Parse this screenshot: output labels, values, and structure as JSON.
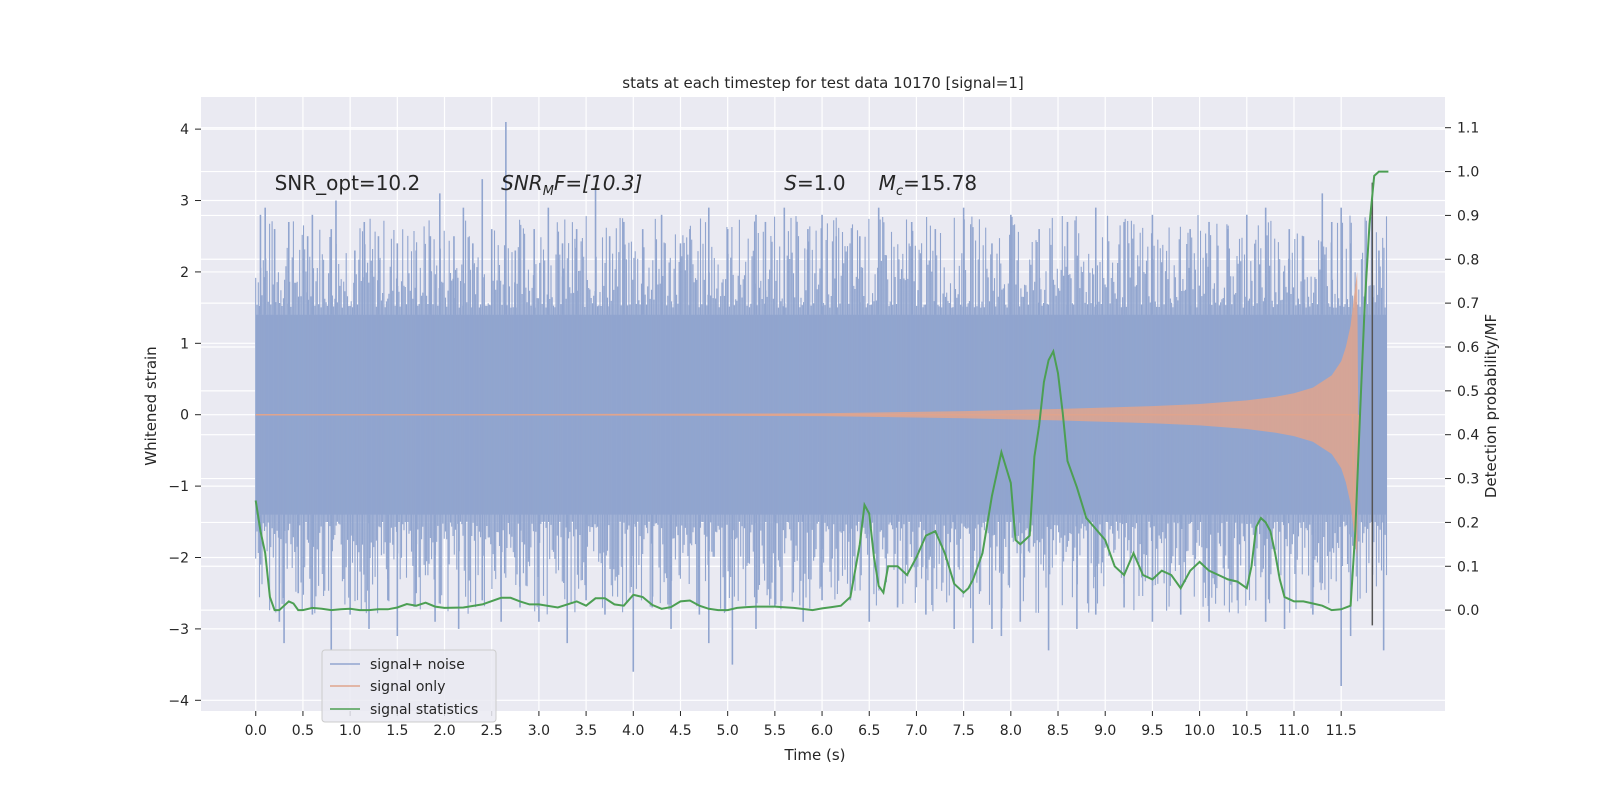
{
  "chart_data": {
    "type": "line",
    "title": "stats at each timestep for test data 10170 [signal=1]",
    "xlabel": "Time (s)",
    "ylabel": "Whitened strain",
    "ylabel_right": "Detection probability/MF",
    "xlim": [
      -0.58,
      12.6
    ],
    "ylim": [
      -4.15,
      4.45
    ],
    "ylim_right": [
      -0.23,
      1.17
    ],
    "x_ticks": [
      0.0,
      0.5,
      1.0,
      1.5,
      2.0,
      2.5,
      3.0,
      3.5,
      4.0,
      4.5,
      5.0,
      5.5,
      6.0,
      6.5,
      7.0,
      7.5,
      8.0,
      8.5,
      9.0,
      9.5,
      10.0,
      10.5,
      11.0,
      11.5
    ],
    "x_tick_labels": [
      "0.0",
      "0.5",
      "1.0",
      "1.5",
      "2.0",
      "2.5",
      "3.0",
      "3.5",
      "4.0",
      "4.5",
      "5.0",
      "5.5",
      "6.0",
      "6.5",
      "7.0",
      "7.5",
      "8.0",
      "8.5",
      "9.0",
      "9.5",
      "10.0",
      "10.5",
      "11.0",
      "11.5"
    ],
    "y_ticks": [
      4,
      3,
      2,
      1,
      0,
      -1,
      -2,
      -3,
      -4
    ],
    "y_tick_labels": [
      "4",
      "3",
      "2",
      "1",
      "0",
      "−1",
      "−2",
      "−3",
      "−4"
    ],
    "y_ticks_right": [
      1.1,
      1.0,
      0.9,
      0.8,
      0.7,
      0.6,
      0.5,
      0.4,
      0.3,
      0.2,
      0.1,
      0.0
    ],
    "y_tick_labels_right": [
      "1.1",
      "1.0",
      "0.9",
      "0.8",
      "0.7",
      "0.6",
      "0.5",
      "0.4",
      "0.3",
      "0.2",
      "0.1",
      "0.0"
    ],
    "grid": true,
    "legend_position": "lower-left",
    "annotations": [
      {
        "name": "snr-opt",
        "text": "SNR_opt=10.2",
        "x": 0.2,
        "y": 3.15
      },
      {
        "name": "snr-mf",
        "text_main": "SNR",
        "text_sub": "M",
        "text_rest": "F=[10.3]",
        "x": 2.6,
        "y": 3.15
      },
      {
        "name": "s-value",
        "text_main": "S",
        "text_rest": "=1.0",
        "x": 5.6,
        "y": 3.15
      },
      {
        "name": "chirp-mass",
        "text_main": "M",
        "text_sub": "c",
        "text_rest": "=15.78",
        "x": 6.6,
        "y": 3.15
      }
    ],
    "series": [
      {
        "name": "signal+ noise",
        "color": "#91a5cf",
        "x_range": [
          0.0,
          11.98
        ],
        "core_band": [
          -1.4,
          1.4
        ],
        "upper_spikes": [
          [
            0.05,
            2.8
          ],
          [
            0.1,
            2.9
          ],
          [
            0.2,
            2.6
          ],
          [
            0.35,
            2.7
          ],
          [
            0.55,
            2.5
          ],
          [
            0.6,
            2.8
          ],
          [
            0.8,
            2.6
          ],
          [
            0.85,
            3.0
          ],
          [
            1.05,
            2.3
          ],
          [
            1.15,
            2.7
          ],
          [
            1.3,
            2.5
          ],
          [
            1.5,
            2.4
          ],
          [
            1.7,
            2.3
          ],
          [
            1.85,
            2.5
          ],
          [
            1.95,
            3.1
          ],
          [
            2.1,
            2.5
          ],
          [
            2.2,
            2.9
          ],
          [
            2.3,
            2.4
          ],
          [
            2.4,
            3.3
          ],
          [
            2.5,
            2.6
          ],
          [
            2.65,
            4.1
          ],
          [
            2.75,
            2.3
          ],
          [
            2.95,
            2.6
          ],
          [
            3.1,
            2.9
          ],
          [
            3.25,
            2.4
          ],
          [
            3.4,
            2.6
          ],
          [
            3.6,
            3.2
          ],
          [
            3.75,
            2.5
          ],
          [
            3.9,
            2.7
          ],
          [
            4.1,
            2.6
          ],
          [
            4.3,
            2.8
          ],
          [
            4.5,
            2.4
          ],
          [
            4.6,
            2.6
          ],
          [
            4.8,
            2.9
          ],
          [
            5.0,
            2.6
          ],
          [
            5.3,
            2.8
          ],
          [
            5.4,
            2.7
          ],
          [
            5.6,
            2.9
          ],
          [
            5.85,
            2.6
          ],
          [
            6.0,
            2.8
          ],
          [
            6.15,
            2.5
          ],
          [
            6.4,
            2.5
          ],
          [
            6.6,
            2.9
          ],
          [
            6.95,
            2.7
          ],
          [
            7.2,
            2.6
          ],
          [
            7.5,
            2.9
          ],
          [
            7.8,
            2.4
          ],
          [
            8.0,
            2.8
          ],
          [
            8.3,
            2.6
          ],
          [
            8.6,
            2.7
          ],
          [
            8.9,
            2.9
          ],
          [
            9.2,
            2.7
          ],
          [
            9.5,
            2.8
          ],
          [
            9.9,
            2.6
          ],
          [
            10.1,
            2.7
          ],
          [
            10.3,
            2.6
          ],
          [
            10.5,
            2.8
          ],
          [
            10.7,
            2.9
          ],
          [
            10.95,
            2.6
          ],
          [
            11.1,
            2.5
          ],
          [
            11.3,
            3.1
          ],
          [
            11.4,
            2.7
          ],
          [
            11.5,
            2.9
          ],
          [
            11.6,
            2.4
          ],
          [
            11.9,
            2.3
          ]
        ],
        "lower_spikes": [
          [
            0.05,
            -2.1
          ],
          [
            0.25,
            -2.9
          ],
          [
            0.3,
            -3.2
          ],
          [
            0.45,
            -2.5
          ],
          [
            0.6,
            -2.8
          ],
          [
            0.8,
            -3.3
          ],
          [
            1.0,
            -2.8
          ],
          [
            1.2,
            -3.0
          ],
          [
            1.4,
            -2.6
          ],
          [
            1.5,
            -3.1
          ],
          [
            1.7,
            -2.5
          ],
          [
            1.9,
            -2.9
          ],
          [
            2.15,
            -3.0
          ],
          [
            2.4,
            -2.6
          ],
          [
            2.6,
            -2.9
          ],
          [
            2.8,
            -2.7
          ],
          [
            3.0,
            -2.9
          ],
          [
            3.3,
            -3.2
          ],
          [
            3.5,
            -2.6
          ],
          [
            3.7,
            -2.8
          ],
          [
            4.0,
            -3.6
          ],
          [
            4.2,
            -2.7
          ],
          [
            4.4,
            -3.0
          ],
          [
            4.7,
            -2.8
          ],
          [
            4.8,
            -3.2
          ],
          [
            5.05,
            -3.5
          ],
          [
            5.3,
            -3.0
          ],
          [
            5.5,
            -2.7
          ],
          [
            5.8,
            -2.9
          ],
          [
            6.0,
            -2.6
          ],
          [
            6.3,
            -2.6
          ],
          [
            6.5,
            -2.9
          ],
          [
            6.8,
            -2.7
          ],
          [
            7.1,
            -2.8
          ],
          [
            7.4,
            -3.0
          ],
          [
            7.6,
            -3.2
          ],
          [
            7.8,
            -3.0
          ],
          [
            7.9,
            -3.1
          ],
          [
            8.1,
            -2.9
          ],
          [
            8.4,
            -3.3
          ],
          [
            8.7,
            -3.0
          ],
          [
            8.9,
            -2.8
          ],
          [
            9.2,
            -2.7
          ],
          [
            9.5,
            -2.9
          ],
          [
            9.8,
            -2.8
          ],
          [
            10.1,
            -2.9
          ],
          [
            10.4,
            -2.6
          ],
          [
            10.7,
            -2.9
          ],
          [
            10.9,
            -3.0
          ],
          [
            11.2,
            -2.8
          ],
          [
            11.5,
            -3.8
          ],
          [
            11.6,
            -3.1
          ],
          [
            11.95,
            -3.3
          ]
        ]
      },
      {
        "name": "signal only",
        "color": "#e0a48d",
        "x_range": [
          0.0,
          11.67
        ],
        "amplitude_points": [
          [
            0.0,
            0.0
          ],
          [
            6.0,
            0.02
          ],
          [
            7.5,
            0.05
          ],
          [
            8.5,
            0.08
          ],
          [
            9.5,
            0.12
          ],
          [
            10.0,
            0.15
          ],
          [
            10.5,
            0.2
          ],
          [
            10.8,
            0.25
          ],
          [
            11.0,
            0.3
          ],
          [
            11.2,
            0.38
          ],
          [
            11.4,
            0.55
          ],
          [
            11.5,
            0.75
          ],
          [
            11.55,
            0.95
          ],
          [
            11.6,
            1.25
          ],
          [
            11.64,
            1.7
          ],
          [
            11.67,
            2.0
          ],
          [
            11.68,
            0.0
          ]
        ],
        "merger_dip": [
          [
            11.64,
            -1.6
          ],
          [
            11.66,
            -1.8
          ],
          [
            11.68,
            0.0
          ]
        ]
      },
      {
        "name": "signal statistics",
        "color": "#4c9f53",
        "axis": "right",
        "x": [
          0.0,
          0.05,
          0.1,
          0.15,
          0.2,
          0.25,
          0.3,
          0.35,
          0.4,
          0.45,
          0.5,
          0.6,
          0.7,
          0.8,
          0.9,
          1.0,
          1.1,
          1.2,
          1.3,
          1.4,
          1.5,
          1.6,
          1.7,
          1.8,
          1.9,
          2.0,
          2.2,
          2.4,
          2.6,
          2.7,
          2.8,
          2.9,
          3.0,
          3.2,
          3.4,
          3.5,
          3.6,
          3.7,
          3.8,
          3.9,
          4.0,
          4.1,
          4.2,
          4.3,
          4.4,
          4.5,
          4.6,
          4.7,
          4.8,
          4.9,
          5.0,
          5.1,
          5.2,
          5.3,
          5.5,
          5.7,
          5.9,
          6.0,
          6.1,
          6.2,
          6.3,
          6.35,
          6.4,
          6.45,
          6.5,
          6.55,
          6.6,
          6.65,
          6.7,
          6.8,
          6.9,
          7.0,
          7.1,
          7.2,
          7.3,
          7.4,
          7.45,
          7.5,
          7.55,
          7.6,
          7.7,
          7.8,
          7.9,
          8.0,
          8.05,
          8.1,
          8.15,
          8.2,
          8.25,
          8.3,
          8.35,
          8.4,
          8.45,
          8.5,
          8.55,
          8.6,
          8.7,
          8.8,
          8.9,
          9.0,
          9.1,
          9.2,
          9.3,
          9.4,
          9.5,
          9.6,
          9.7,
          9.8,
          9.9,
          10.0,
          10.1,
          10.2,
          10.3,
          10.4,
          10.5,
          10.55,
          10.6,
          10.65,
          10.7,
          10.75,
          10.8,
          10.85,
          10.9,
          10.95,
          11.0,
          11.1,
          11.2,
          11.3,
          11.4,
          11.5,
          11.6,
          11.65,
          11.7,
          11.75,
          11.8,
          11.85,
          11.9,
          11.95,
          12.0
        ],
        "y": [
          0.25,
          0.18,
          0.13,
          0.03,
          0.0,
          0.0,
          0.01,
          0.02,
          0.015,
          0.0,
          0.0,
          0.005,
          0.003,
          0.0,
          0.002,
          0.003,
          0.0,
          0.0,
          0.002,
          0.002,
          0.006,
          0.014,
          0.01,
          0.017,
          0.008,
          0.005,
          0.006,
          0.013,
          0.028,
          0.028,
          0.02,
          0.013,
          0.013,
          0.006,
          0.02,
          0.01,
          0.027,
          0.027,
          0.013,
          0.01,
          0.035,
          0.03,
          0.012,
          0.003,
          0.007,
          0.02,
          0.022,
          0.01,
          0.003,
          0.0,
          0.0,
          0.005,
          0.007,
          0.008,
          0.008,
          0.005,
          0.0,
          0.004,
          0.007,
          0.01,
          0.03,
          0.09,
          0.15,
          0.24,
          0.22,
          0.12,
          0.055,
          0.04,
          0.1,
          0.1,
          0.08,
          0.12,
          0.17,
          0.18,
          0.13,
          0.06,
          0.05,
          0.04,
          0.05,
          0.07,
          0.13,
          0.26,
          0.36,
          0.29,
          0.16,
          0.15,
          0.16,
          0.17,
          0.35,
          0.42,
          0.52,
          0.57,
          0.59,
          0.54,
          0.45,
          0.34,
          0.28,
          0.21,
          0.185,
          0.16,
          0.1,
          0.08,
          0.13,
          0.08,
          0.07,
          0.09,
          0.08,
          0.05,
          0.09,
          0.11,
          0.09,
          0.08,
          0.07,
          0.065,
          0.05,
          0.1,
          0.19,
          0.21,
          0.2,
          0.18,
          0.13,
          0.07,
          0.03,
          0.025,
          0.02,
          0.02,
          0.015,
          0.01,
          0.0,
          0.002,
          0.01,
          0.18,
          0.45,
          0.7,
          0.88,
          0.99,
          1.0,
          1.0,
          1.0
        ]
      }
    ],
    "vertical_markers": [
      {
        "x": 11.83,
        "y_top": 3.25,
        "y_bottom": -2.95,
        "color": "#555555"
      }
    ],
    "legend": [
      {
        "label": "signal+ noise",
        "color": "#91a5cf"
      },
      {
        "label": "signal only",
        "color": "#e0a48d"
      },
      {
        "label": "signal statistics",
        "color": "#4c9f53"
      }
    ]
  }
}
